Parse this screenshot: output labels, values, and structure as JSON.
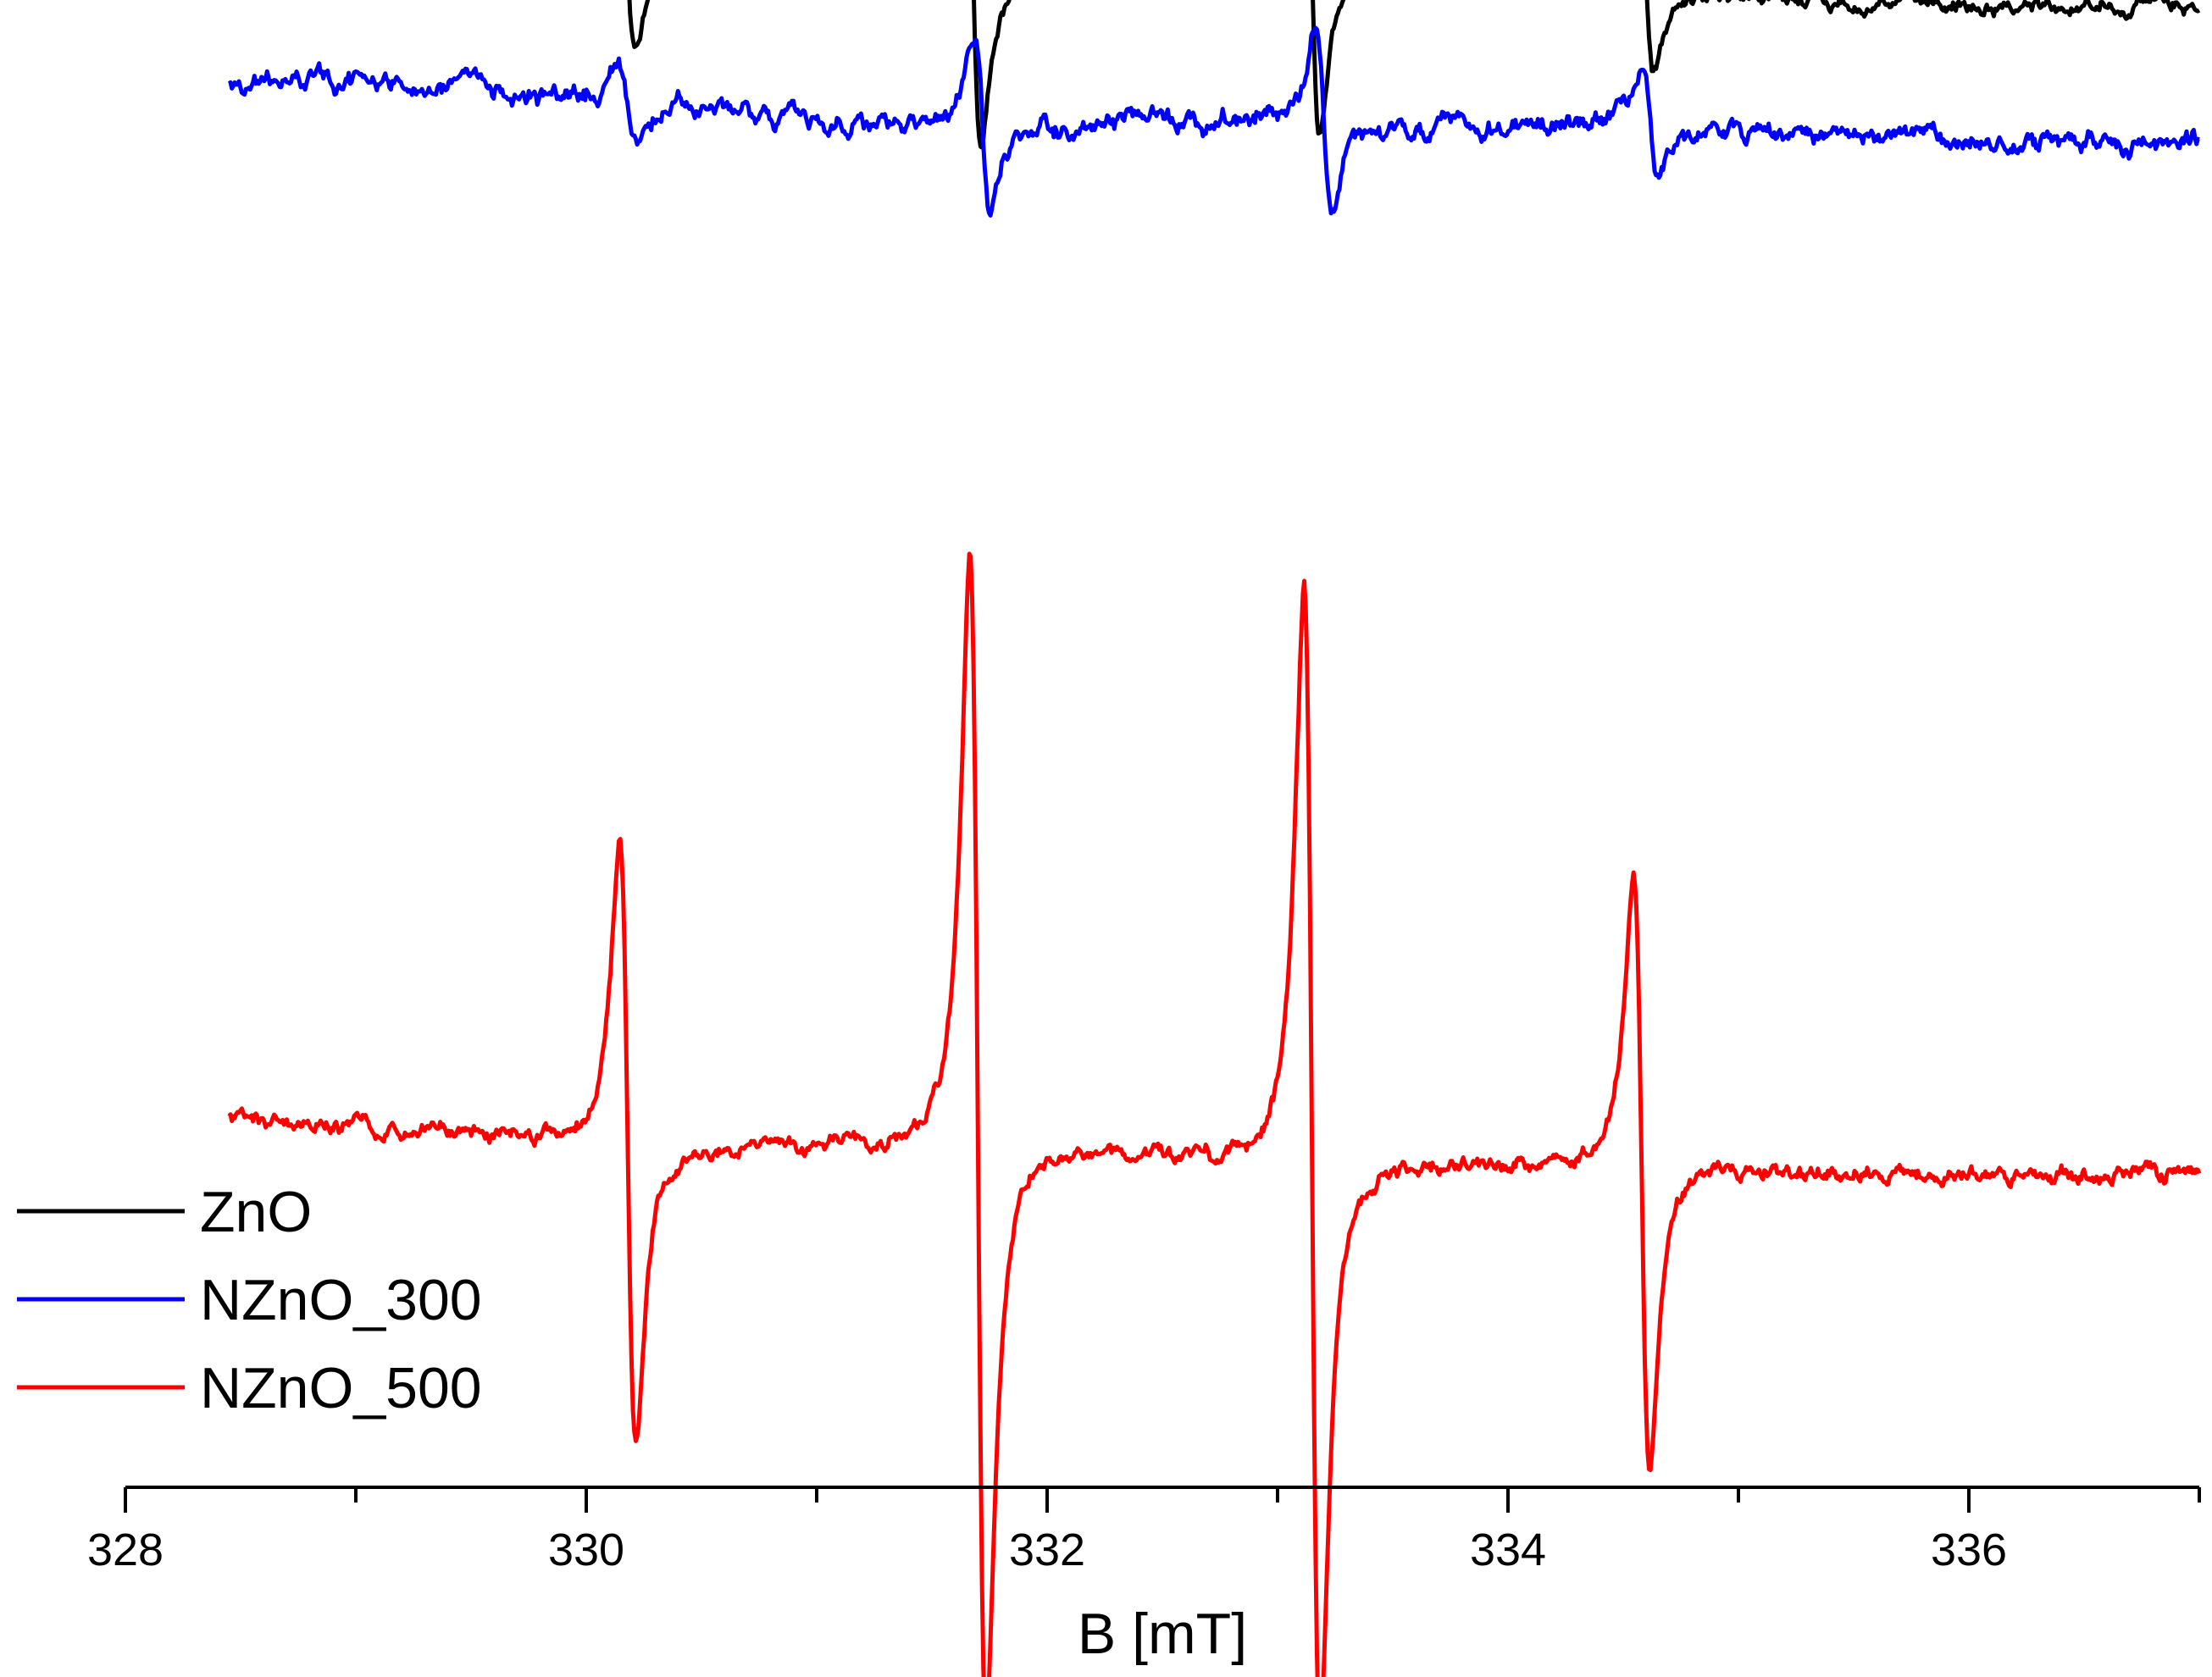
{
  "chart_data": {
    "type": "line",
    "title": "",
    "xlabel": "B [mT]",
    "ylabel": "",
    "xlim": [
      328,
      337
    ],
    "xticks": [
      "328",
      "330",
      "332",
      "334",
      "336"
    ],
    "x_minor_step": 1,
    "grid": false,
    "legend_position": "bottom-left",
    "series": [
      {
        "name": "ZnO",
        "color": "#000000",
        "offset": 870,
        "noise": 8,
        "x_start": 328.45,
        "x_end": 337.0,
        "baseline": [
          [
            328.45,
            930
          ],
          [
            329.5,
            915
          ],
          [
            330.5,
            892
          ],
          [
            331.5,
            878
          ],
          [
            332.5,
            878
          ],
          [
            333.5,
            898
          ],
          [
            334.5,
            875
          ],
          [
            335.5,
            855
          ],
          [
            337.0,
            852
          ]
        ],
        "peaks": [
          {
            "center": 330.18,
            "amplitude": 105,
            "width": 0.055
          },
          {
            "center": 331.68,
            "amplitude": 195,
            "width": 0.055
          },
          {
            "center": 333.15,
            "amplitude": 195,
            "width": 0.055
          },
          {
            "center": 334.6,
            "amplitude": 105,
            "width": 0.055
          }
        ]
      },
      {
        "name": "NZnO_300",
        "color": "#0000ff",
        "offset": 760,
        "noise": 10,
        "x_start": 328.45,
        "x_end": 337.0,
        "baseline": [
          [
            328.45,
            870
          ],
          [
            329.0,
            875
          ],
          [
            329.5,
            865
          ],
          [
            330.0,
            850
          ],
          [
            330.5,
            840
          ],
          [
            331.0,
            828
          ],
          [
            331.5,
            812
          ],
          [
            332.0,
            818
          ],
          [
            332.5,
            828
          ],
          [
            333.0,
            830
          ],
          [
            333.5,
            812
          ],
          [
            334.0,
            820
          ],
          [
            334.5,
            825
          ],
          [
            335.0,
            812
          ],
          [
            335.5,
            808
          ],
          [
            336.0,
            800
          ],
          [
            337.0,
            800
          ]
        ],
        "peaks": [
          {
            "center": 330.18,
            "amplitude": 40,
            "width": 0.06
          },
          {
            "center": 331.72,
            "amplitude": 105,
            "width": 0.06
          },
          {
            "center": 333.2,
            "amplitude": 110,
            "width": 0.06
          },
          {
            "center": 334.62,
            "amplitude": 60,
            "width": 0.06
          }
        ]
      },
      {
        "name": "NZnO_500",
        "color": "#ff0000",
        "offset": 0,
        "noise": 8,
        "x_start": 328.45,
        "x_end": 337.0,
        "baseline": [
          [
            328.45,
            408
          ],
          [
            329.5,
            390
          ],
          [
            330.5,
            372
          ],
          [
            331.5,
            375
          ],
          [
            332.5,
            362
          ],
          [
            333.5,
            352
          ],
          [
            334.5,
            350
          ],
          [
            335.5,
            345
          ],
          [
            336.5,
            340
          ],
          [
            337.0,
            342
          ]
        ],
        "peaks": [
          {
            "center": 330.18,
            "amplitude": 355,
            "width": 0.06
          },
          {
            "center": 331.7,
            "amplitude": 690,
            "width": 0.06
          },
          {
            "center": 333.15,
            "amplitude": 680,
            "width": 0.06
          },
          {
            "center": 334.58,
            "amplitude": 355,
            "width": 0.06
          }
        ]
      }
    ]
  }
}
